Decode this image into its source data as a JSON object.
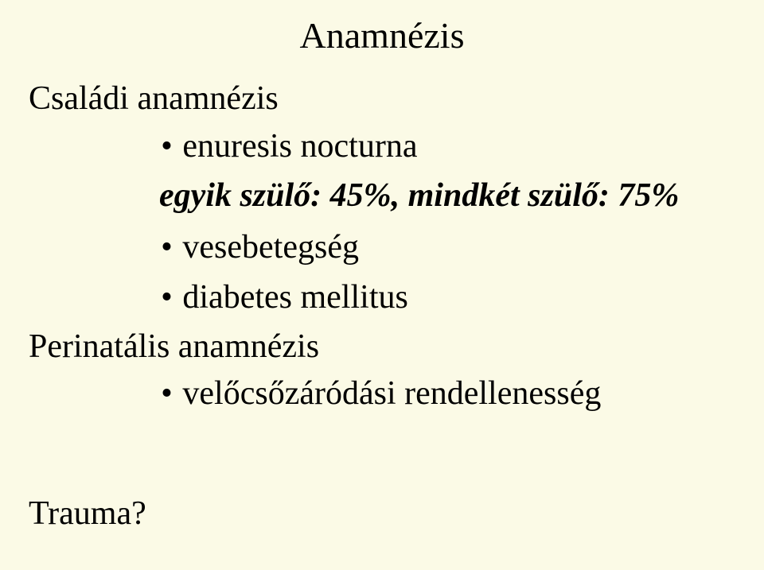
{
  "slide": {
    "background_color": "#fbfae6",
    "text_color": "#000000",
    "font_family": "Times New Roman",
    "title": "Anamnézis",
    "title_fontsize": 46,
    "sections": [
      {
        "heading": "Családi anamnézis",
        "heading_fontsize": 42,
        "bullets": [
          {
            "text": "enuresis nocturna",
            "fontsize": 42
          },
          {
            "text": "egyik szülő: 45%, mindkét szülő: 75%",
            "emphasis": true,
            "bold": true,
            "italic": true,
            "fontsize": 42
          },
          {
            "text": "vesebetegség",
            "fontsize": 42
          },
          {
            "text": "diabetes mellitus",
            "fontsize": 42
          }
        ]
      },
      {
        "heading": "Perinatális anamnézis",
        "heading_fontsize": 42,
        "bullets": [
          {
            "text": "velőcsőzáródási rendellenesség",
            "fontsize": 42
          }
        ]
      },
      {
        "heading": "Trauma?",
        "heading_fontsize": 42,
        "bullets": []
      }
    ],
    "bullet_glyph": "•"
  }
}
